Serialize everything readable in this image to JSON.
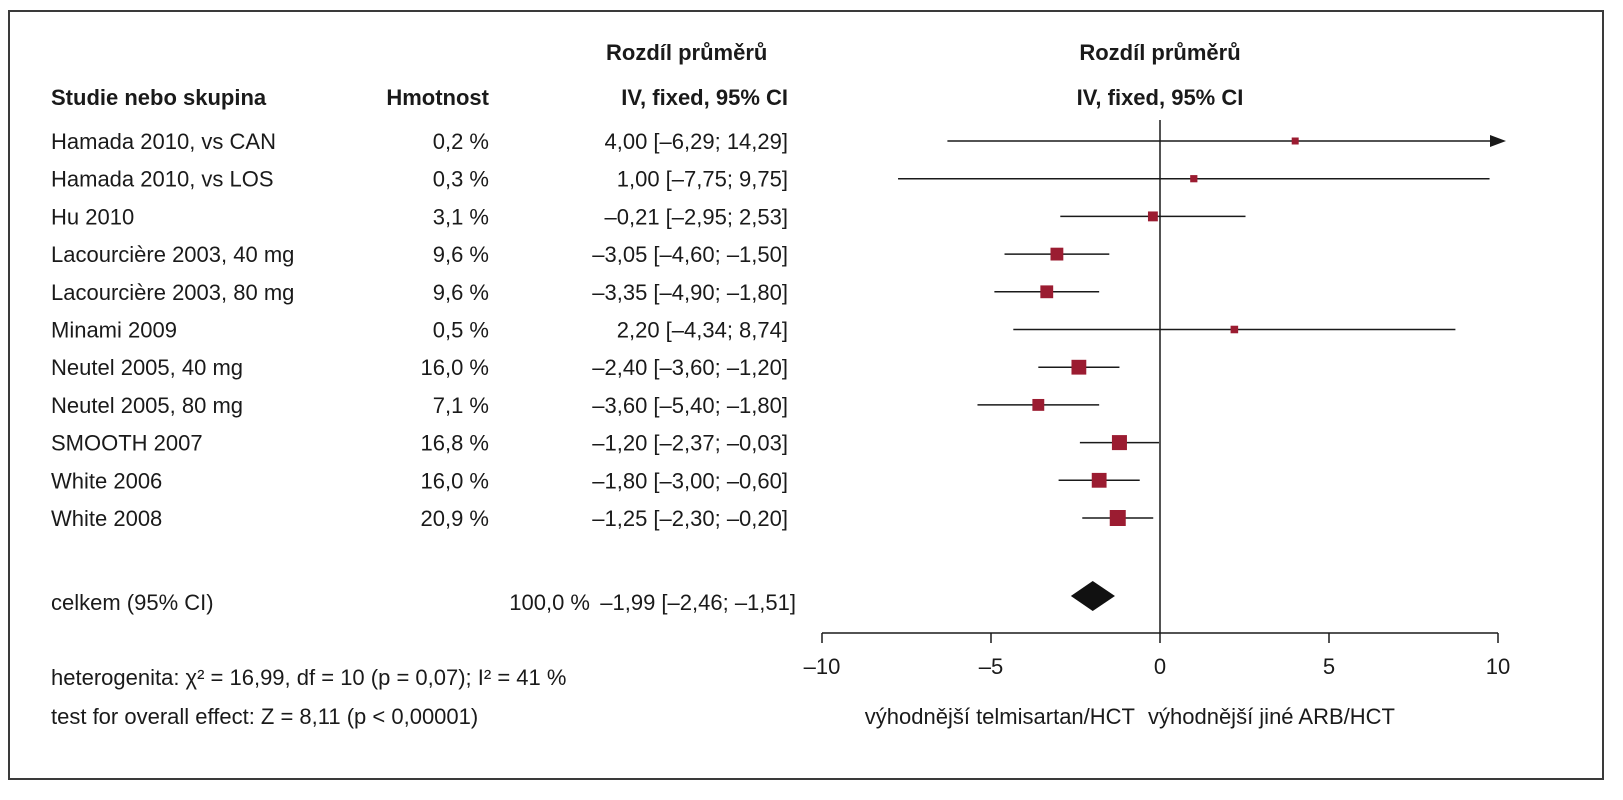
{
  "headers": {
    "study": "Studie nebo skupina",
    "weight": "Hmotnost",
    "ci_line1": "Rozdíl průměrů",
    "ci_line2": "IV, fixed, 95% CI",
    "plot_line1": "Rozdíl průměrů",
    "plot_line2": "IV, fixed, 95% CI"
  },
  "total": {
    "label": "celkem (95% CI)",
    "weight": "100,0 %",
    "ci_text": "–1,99 [–2,46; –1,51]"
  },
  "footer": {
    "heterogeneity": "heterogenita: χ² = 16,99, df = 10 (p = 0,07); I² = 41 %",
    "overall": "test for overall effect: Z = 8,11 (p < 0,00001)",
    "favours_left": "výhodnější telmisartan/HCT",
    "favours_right": "výhodnější jiné ARB/HCT"
  },
  "chart_data": {
    "type": "forest",
    "x_ticks": [
      -10,
      -5,
      0,
      5,
      10
    ],
    "x_tick_labels": [
      "–10",
      "–5",
      "0",
      "5",
      "10"
    ],
    "xlim": [
      -10,
      10
    ],
    "colors": {
      "marker": "#9b1c31",
      "line": "#1a1a1a",
      "diamond": "#111111"
    },
    "studies": [
      {
        "name": "Hamada 2010, vs CAN",
        "weight_label": "0,2 %",
        "weight": 0.2,
        "ci_text": "4,00 [–6,29; 14,29]",
        "mean": 4.0,
        "lower": -6.29,
        "upper": 14.29,
        "arrow_right": true
      },
      {
        "name": "Hamada 2010, vs LOS",
        "weight_label": "0,3 %",
        "weight": 0.3,
        "ci_text": "1,00 [–7,75; 9,75]",
        "mean": 1.0,
        "lower": -7.75,
        "upper": 9.75
      },
      {
        "name": "Hu 2010",
        "weight_label": "3,1 %",
        "weight": 3.1,
        "ci_text": "–0,21 [–2,95; 2,53]",
        "mean": -0.21,
        "lower": -2.95,
        "upper": 2.53
      },
      {
        "name": "Lacourcière 2003, 40 mg",
        "weight_label": "9,6 %",
        "weight": 9.6,
        "ci_text": "–3,05 [–4,60; –1,50]",
        "mean": -3.05,
        "lower": -4.6,
        "upper": -1.5
      },
      {
        "name": "Lacourcière 2003, 80 mg",
        "weight_label": "9,6 %",
        "weight": 9.6,
        "ci_text": "–3,35 [–4,90; –1,80]",
        "mean": -3.35,
        "lower": -4.9,
        "upper": -1.8
      },
      {
        "name": "Minami 2009",
        "weight_label": "0,5 %",
        "weight": 0.5,
        "ci_text": "2,20 [–4,34; 8,74]",
        "mean": 2.2,
        "lower": -4.34,
        "upper": 8.74
      },
      {
        "name": "Neutel 2005, 40 mg",
        "weight_label": "16,0 %",
        "weight": 16.0,
        "ci_text": "–2,40 [–3,60; –1,20]",
        "mean": -2.4,
        "lower": -3.6,
        "upper": -1.2
      },
      {
        "name": "Neutel 2005, 80 mg",
        "weight_label": "7,1 %",
        "weight": 7.1,
        "ci_text": "–3,60 [–5,40; –1,80]",
        "mean": -3.6,
        "lower": -5.4,
        "upper": -1.8
      },
      {
        "name": "SMOOTH 2007",
        "weight_label": "16,8 %",
        "weight": 16.8,
        "ci_text": "–1,20 [–2,37; –0,03]",
        "mean": -1.2,
        "lower": -2.37,
        "upper": -0.03
      },
      {
        "name": "White 2006",
        "weight_label": "16,0 %",
        "weight": 16.0,
        "ci_text": "–1,80 [–3,00; –0,60]",
        "mean": -1.8,
        "lower": -3.0,
        "upper": -0.6
      },
      {
        "name": "White 2008",
        "weight_label": "20,9 %",
        "weight": 20.9,
        "ci_text": "–1,25 [–2,30; –0,20]",
        "mean": -1.25,
        "lower": -2.3,
        "upper": -0.2
      }
    ],
    "overall": {
      "mean": -1.99,
      "lower": -2.46,
      "upper": -1.51
    }
  }
}
